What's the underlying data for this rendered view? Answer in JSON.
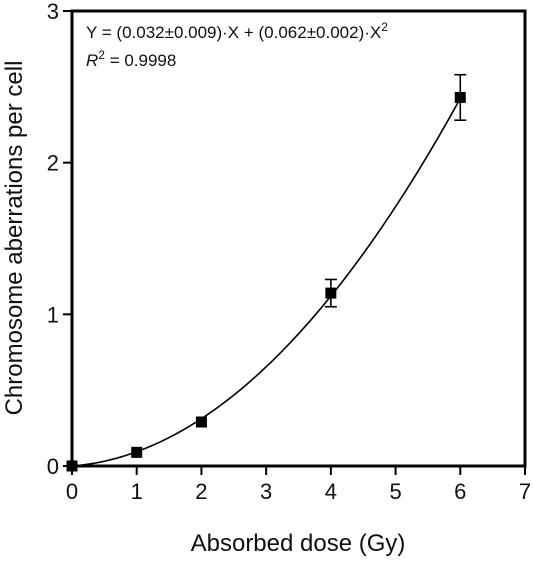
{
  "chart_data": {
    "type": "scatter",
    "xlabel": "Absorbed dose (Gy)",
    "ylabel": "Chromosome aberrations per cell",
    "xlim": [
      0,
      7
    ],
    "ylim": [
      0,
      3
    ],
    "x_ticks": [
      "0",
      "1",
      "2",
      "3",
      "4",
      "5",
      "6",
      "7"
    ],
    "y_ticks": [
      "0",
      "1",
      "2",
      "3"
    ],
    "x_tick_values": [
      0,
      1,
      2,
      3,
      4,
      5,
      6,
      7
    ],
    "y_tick_values": [
      0,
      1,
      2,
      3
    ],
    "grid": false,
    "legend": "none",
    "points": [
      {
        "x": 0,
        "y": 0.0,
        "err": 0
      },
      {
        "x": 1,
        "y": 0.09,
        "err": 0
      },
      {
        "x": 2,
        "y": 0.29,
        "err": 0
      },
      {
        "x": 4,
        "y": 1.14,
        "err": 0.09
      },
      {
        "x": 6,
        "y": 2.43,
        "err": 0.15
      }
    ],
    "fit": {
      "model": "Y = a*X + b*X^2",
      "a": 0.032,
      "b": 0.062,
      "x_range": [
        0,
        6
      ]
    },
    "annotations": {
      "equation_prefix": "Y = (0.032±0.009)·X + (0.062±0.002)·X",
      "equation_sup": "2",
      "r2_r": "R",
      "r2_sup": "2",
      "r2_value": " = 0.9998"
    },
    "colors": {
      "axis": "#000000",
      "marker": "#000000",
      "line": "#000000"
    }
  }
}
